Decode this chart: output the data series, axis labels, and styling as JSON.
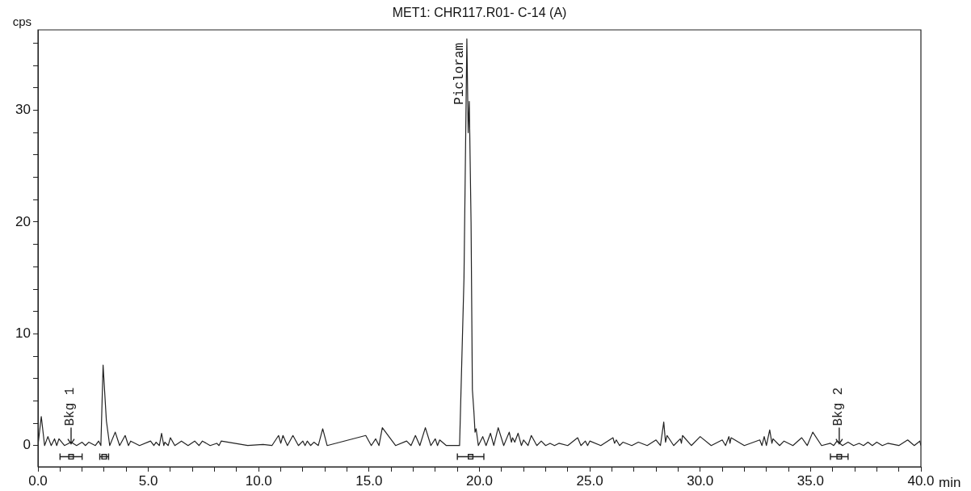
{
  "chart_data": {
    "type": "line",
    "title": "MET1: CHR117.R01- C-14 (A)",
    "ylabel": "cps",
    "xlabel": "min",
    "color": "#222222",
    "grid": false,
    "legend": false,
    "marker": "none",
    "line_style": "solid",
    "x": [
      0,
      0.15,
      0.3,
      0.45,
      0.6,
      0.75,
      0.85,
      0.95,
      1.2,
      1.5,
      1.75,
      2.0,
      2.15,
      2.3,
      2.6,
      2.75,
      2.85,
      2.95,
      3.1,
      3.25,
      3.5,
      3.7,
      3.95,
      4.1,
      4.2,
      4.6,
      5.1,
      5.25,
      5.35,
      5.5,
      5.6,
      5.7,
      5.75,
      5.9,
      6.0,
      6.2,
      6.5,
      6.8,
      7.1,
      7.3,
      7.45,
      7.8,
      8.1,
      8.2,
      8.3,
      9.5,
      10.2,
      10.6,
      10.9,
      11.0,
      11.1,
      11.3,
      11.55,
      11.8,
      12.0,
      12.1,
      12.2,
      12.35,
      12.5,
      12.7,
      12.9,
      13.1,
      14.85,
      15.1,
      15.3,
      15.45,
      15.6,
      16.2,
      16.7,
      16.9,
      17.1,
      17.3,
      17.55,
      17.8,
      18.0,
      18.1,
      18.2,
      18.5,
      19.1,
      19.3,
      19.43,
      19.49,
      19.54,
      19.62,
      19.68,
      19.75,
      19.8,
      19.85,
      19.95,
      20.15,
      20.3,
      20.5,
      20.65,
      20.85,
      21.1,
      21.35,
      21.45,
      21.5,
      21.6,
      21.75,
      21.9,
      22.0,
      22.2,
      22.35,
      22.6,
      22.8,
      23.0,
      23.2,
      23.4,
      23.6,
      24.0,
      24.45,
      24.6,
      24.8,
      24.9,
      25.0,
      25.5,
      26.05,
      26.12,
      26.2,
      26.35,
      26.5,
      26.9,
      27.2,
      27.6,
      28.0,
      28.2,
      28.35,
      28.43,
      28.5,
      28.8,
      29.1,
      29.15,
      29.2,
      29.6,
      30.0,
      30.5,
      31.0,
      31.15,
      31.3,
      31.35,
      31.4,
      32.0,
      32.7,
      32.8,
      32.9,
      33.0,
      33.15,
      33.25,
      33.3,
      33.6,
      33.8,
      34.2,
      34.6,
      34.85,
      35.1,
      35.5,
      35.9,
      36.05,
      36.2,
      36.45,
      36.7,
      36.95,
      37.2,
      37.4,
      37.6,
      37.8,
      38.0,
      38.25,
      38.5,
      39.0,
      39.4,
      39.7,
      39.95,
      40
    ],
    "series": [
      {
        "values": [
          0,
          2.6,
          0,
          0.8,
          0,
          0.6,
          0,
          0.6,
          0,
          0.3,
          0,
          0.3,
          0,
          0.3,
          0,
          0.4,
          0,
          7.2,
          2.2,
          0,
          1.2,
          0,
          0.9,
          0,
          0.4,
          0,
          0.4,
          0,
          0.3,
          0,
          1.1,
          0,
          0.3,
          0,
          0.7,
          0,
          0.4,
          0,
          0.4,
          0,
          0.4,
          0,
          0.2,
          0,
          0.4,
          0,
          0.1,
          0,
          0.9,
          0.2,
          0.9,
          0,
          0.9,
          0,
          0.4,
          0,
          0.4,
          0,
          0.3,
          0,
          1.5,
          0,
          0.9,
          0,
          0.6,
          0,
          1.6,
          0,
          0.4,
          0,
          0.9,
          0,
          1.6,
          0,
          0.6,
          0,
          0.5,
          0,
          0,
          15,
          36.4,
          28,
          30.8,
          20,
          5,
          3,
          1.2,
          1.5,
          0,
          0.8,
          0,
          1.1,
          0,
          1.6,
          0,
          1.2,
          0.3,
          0.7,
          0.3,
          1.1,
          0,
          0.5,
          0,
          0.9,
          0,
          0.4,
          0,
          0.2,
          0,
          0.2,
          0,
          0.7,
          0,
          0.4,
          0,
          0.4,
          0,
          0.7,
          0.2,
          0.5,
          0,
          0.3,
          0,
          0.3,
          0,
          0.5,
          0,
          2.1,
          0.3,
          0.9,
          0,
          0.6,
          0.2,
          0.9,
          0,
          0.8,
          0,
          0.5,
          0,
          0.8,
          0.2,
          0.7,
          0,
          0.5,
          0,
          0.8,
          0,
          1.4,
          0.2,
          0.6,
          0,
          0.4,
          0,
          0.7,
          0,
          1.2,
          0,
          0.2,
          0,
          0.4,
          0,
          0.3,
          0,
          0.2,
          0,
          0.3,
          0,
          0.3,
          0,
          0.2,
          0,
          0.5,
          0,
          0.4,
          0
        ]
      },
      {
        "type": "scatter",
        "x": [
          1.5,
          3.0,
          19.6,
          36.3
        ],
        "values": [
          -1,
          -1,
          -1,
          -1
        ],
        "xerrors": [
          0.5,
          0.2,
          0.6,
          0.4
        ],
        "value_labels": [
          "Bkg 1",
          null,
          null,
          "Bkg 2"
        ],
        "color": "#222222",
        "marker": "square"
      }
    ],
    "xlim": [
      0,
      40
    ],
    "ylim": [
      -1.9,
      37.2
    ],
    "xticks": [
      {
        "value": 0,
        "label": "0.0"
      },
      {
        "value": 1,
        "label": null
      },
      {
        "value": 2,
        "label": null
      },
      {
        "value": 3,
        "label": null
      },
      {
        "value": 4,
        "label": null
      },
      {
        "value": 5,
        "label": "5.0"
      },
      {
        "value": 6,
        "label": null
      },
      {
        "value": 7,
        "label": null
      },
      {
        "value": 8,
        "label": null
      },
      {
        "value": 9,
        "label": null
      },
      {
        "value": 10,
        "label": "10.0"
      },
      {
        "value": 11,
        "label": null
      },
      {
        "value": 12,
        "label": null
      },
      {
        "value": 13,
        "label": null
      },
      {
        "value": 14,
        "label": null
      },
      {
        "value": 15,
        "label": "15.0"
      },
      {
        "value": 16,
        "label": null
      },
      {
        "value": 17,
        "label": null
      },
      {
        "value": 18,
        "label": null
      },
      {
        "value": 19,
        "label": null
      },
      {
        "value": 20,
        "label": "20.0"
      },
      {
        "value": 21,
        "label": null
      },
      {
        "value": 22,
        "label": null
      },
      {
        "value": 23,
        "label": null
      },
      {
        "value": 24,
        "label": null
      },
      {
        "value": 25,
        "label": "25.0"
      },
      {
        "value": 26,
        "label": null
      },
      {
        "value": 27,
        "label": null
      },
      {
        "value": 28,
        "label": null
      },
      {
        "value": 29,
        "label": null
      },
      {
        "value": 30,
        "label": "30.0"
      },
      {
        "value": 31,
        "label": null
      },
      {
        "value": 32,
        "label": null
      },
      {
        "value": 33,
        "label": null
      },
      {
        "value": 34,
        "label": null
      },
      {
        "value": 35,
        "label": "35.0"
      },
      {
        "value": 36,
        "label": null
      },
      {
        "value": 37,
        "label": null
      },
      {
        "value": 38,
        "label": null
      },
      {
        "value": 39,
        "label": null
      },
      {
        "value": 40,
        "label": "40.0"
      }
    ],
    "yticks": [
      0,
      {
        "value": 2,
        "label": null
      },
      {
        "value": 4,
        "label": null
      },
      {
        "value": 6,
        "label": null
      },
      {
        "value": 8,
        "label": null
      },
      10,
      {
        "value": 12,
        "label": null
      },
      {
        "value": 14,
        "label": null
      },
      {
        "value": 16,
        "label": null
      },
      {
        "value": 18,
        "label": null
      },
      20,
      {
        "value": 22,
        "label": null
      },
      {
        "value": 24,
        "label": null
      },
      {
        "value": 26,
        "label": null
      },
      {
        "value": 28,
        "label": null
      },
      30,
      {
        "value": 32,
        "label": null
      },
      {
        "value": 34,
        "label": null
      },
      {
        "value": 36,
        "label": null
      }
    ],
    "annotations": [
      {
        "text": "Picloram",
        "x": 19.4,
        "y": 30.5
      }
    ]
  }
}
